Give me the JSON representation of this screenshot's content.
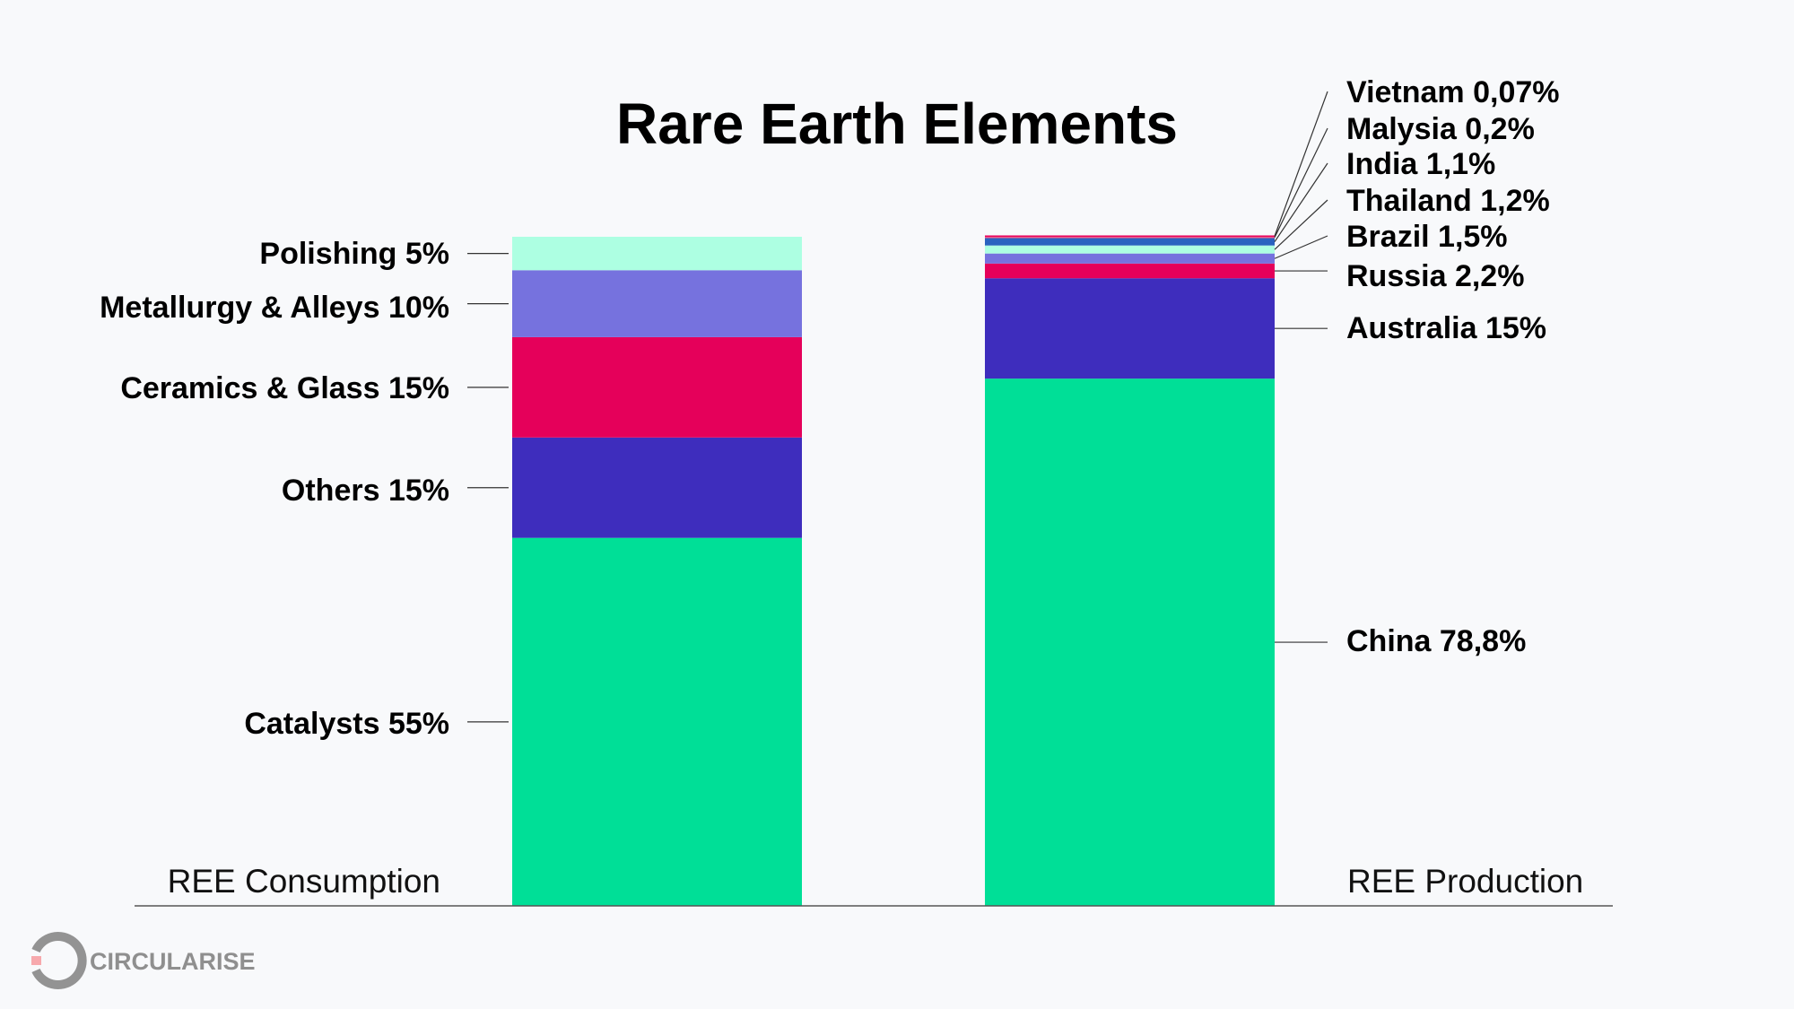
{
  "chart_data": {
    "type": "bar",
    "stacked": true,
    "title": "Rare Earth Elements",
    "categories": [
      "REE Consumption",
      "REE Production"
    ],
    "ylim": [
      0,
      100
    ],
    "grid": false,
    "legend": "none",
    "stacks": [
      {
        "category": "REE Consumption",
        "segments": [
          {
            "label": "Catalysts 55%",
            "value": 55,
            "color": "#00df97"
          },
          {
            "label": "Others 15%",
            "value": 15,
            "color": "#3e2dbd"
          },
          {
            "label": "Ceramics & Glass 15%",
            "value": 15,
            "color": "#e5005a"
          },
          {
            "label": "Metallurgy & Alleys 10%",
            "value": 10,
            "color": "#7672de"
          },
          {
            "label": "Polishing 5%",
            "value": 5,
            "color": "#adffe2"
          }
        ]
      },
      {
        "category": "REE Production",
        "segments": [
          {
            "label": "China 78,8%",
            "value": 78.8,
            "color": "#00df97"
          },
          {
            "label": "Australia 15%",
            "value": 15,
            "color": "#3e2dbd"
          },
          {
            "label": "Russia 2,2%",
            "value": 2.2,
            "color": "#e5005a"
          },
          {
            "label": "Brazil 1,5%",
            "value": 1.5,
            "color": "#7672de"
          },
          {
            "label": "Thailand 1,2%",
            "value": 1.2,
            "color": "#adffe2"
          },
          {
            "label": "India 1,1%",
            "value": 1.1,
            "color": "#2a62c0"
          },
          {
            "label": "Malysia 0,2%",
            "value": 0.2,
            "color": "#f25c8a"
          },
          {
            "label": "Vietnam 0,07%",
            "value": 0.07,
            "color": "#e5005a"
          }
        ]
      }
    ]
  },
  "brand": {
    "name": "CIRCULARISE",
    "color": "#939393",
    "accent": "#f7a9ad"
  }
}
